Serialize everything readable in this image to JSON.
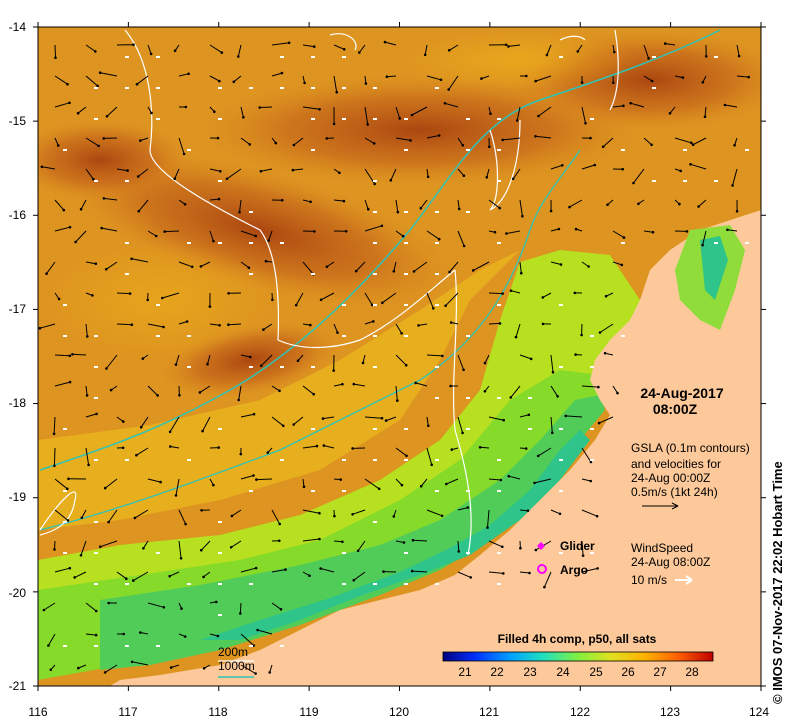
{
  "chart_data": {
    "type": "heatmap",
    "title": "Filled 4h comp, p50, all sats",
    "datetime": {
      "date": "24-Aug-2017",
      "time": "08:00Z"
    },
    "x_axis": {
      "ticks": [
        "116",
        "117",
        "118",
        "119",
        "120",
        "121",
        "122",
        "123",
        "124"
      ],
      "range": [
        116,
        124
      ]
    },
    "y_axis": {
      "ticks": [
        "-14",
        "-15",
        "-16",
        "-17",
        "-18",
        "-19",
        "-20",
        "-21"
      ],
      "range": [
        -21,
        -14
      ]
    },
    "colorbar": {
      "ticks": [
        "21",
        "22",
        "23",
        "24",
        "25",
        "26",
        "27",
        "28"
      ],
      "range": [
        20.5,
        28.5
      ]
    },
    "gsla": {
      "line1": "GSLA (0.1m contours)",
      "line2": "and velocities for",
      "line3": "24-Aug 00:00Z",
      "line4": "0.5m/s (1kt 24h)"
    },
    "wind": {
      "line1": "WindSpeed",
      "line2": "24-Aug 08:00Z",
      "line3": "10 m/s"
    },
    "legend": {
      "glider": "Glider",
      "argo": "Argo"
    },
    "bathymetry": {
      "contour_200": "200m",
      "contour_1000": "1000m"
    },
    "colors": {
      "land": "#fdc99a",
      "warm": "#b35a1a",
      "mid": "#e7a21e",
      "cool": "#7ed321",
      "coast_cool": "#2ec28a",
      "contour_1000": "#2ec4b6",
      "glider": "#ff00ff",
      "argo": "#ff00ff"
    },
    "credit": "IMOS 07-Nov-2017 22:02 Hobart Time"
  }
}
